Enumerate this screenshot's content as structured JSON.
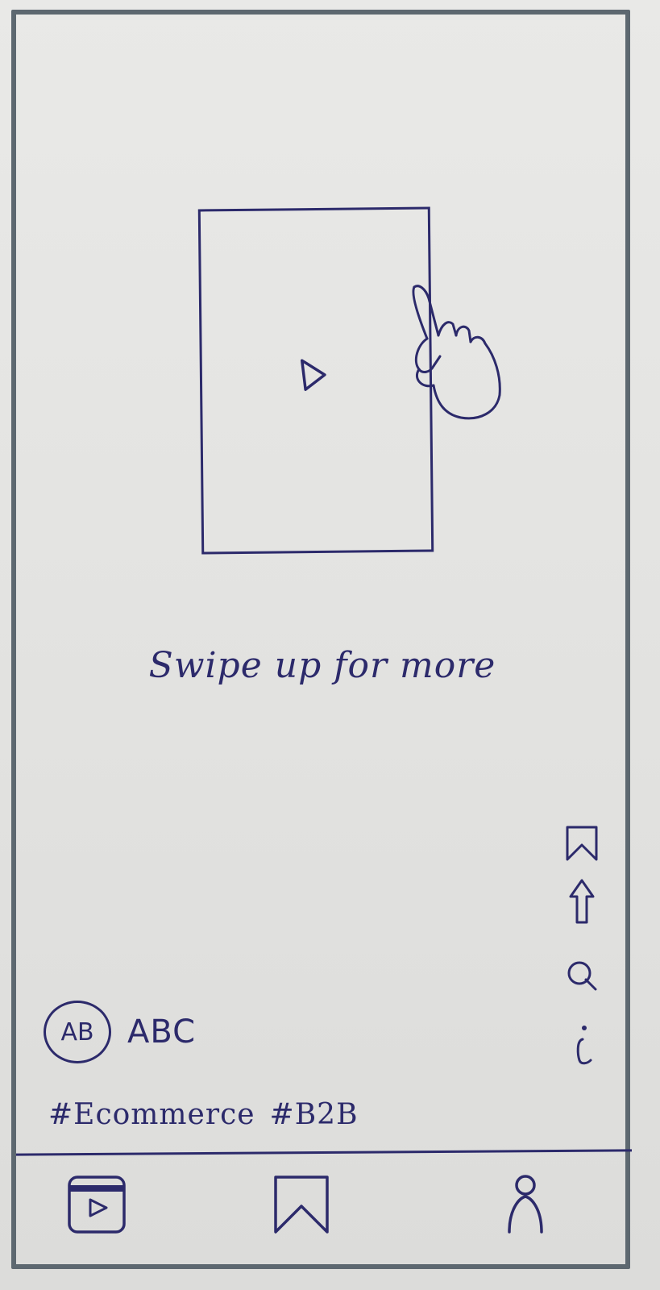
{
  "feed": {
    "video": {
      "play_icon": "play-icon",
      "gesture_icon": "hand-swipe-icon"
    },
    "swipe_hint": "Swipe up for more",
    "actions": [
      {
        "name": "save",
        "icon": "bookmark-icon"
      },
      {
        "name": "share",
        "icon": "share-arrow-icon"
      },
      {
        "name": "search",
        "icon": "search-icon"
      },
      {
        "name": "info",
        "icon": "info-icon"
      }
    ],
    "author": {
      "avatar_initials": "AB",
      "name": "ABC"
    },
    "hashtags": [
      "#Ecommerce",
      "#B2B"
    ]
  },
  "bottom_nav": {
    "items": [
      {
        "name": "videos",
        "icon": "video-player-icon"
      },
      {
        "name": "saved",
        "icon": "bookmark-icon"
      },
      {
        "name": "profile",
        "icon": "user-icon"
      }
    ]
  },
  "colors": {
    "ink": "#2c2a6b",
    "frame": "#5d6870",
    "paper": "#e6e6e4"
  }
}
